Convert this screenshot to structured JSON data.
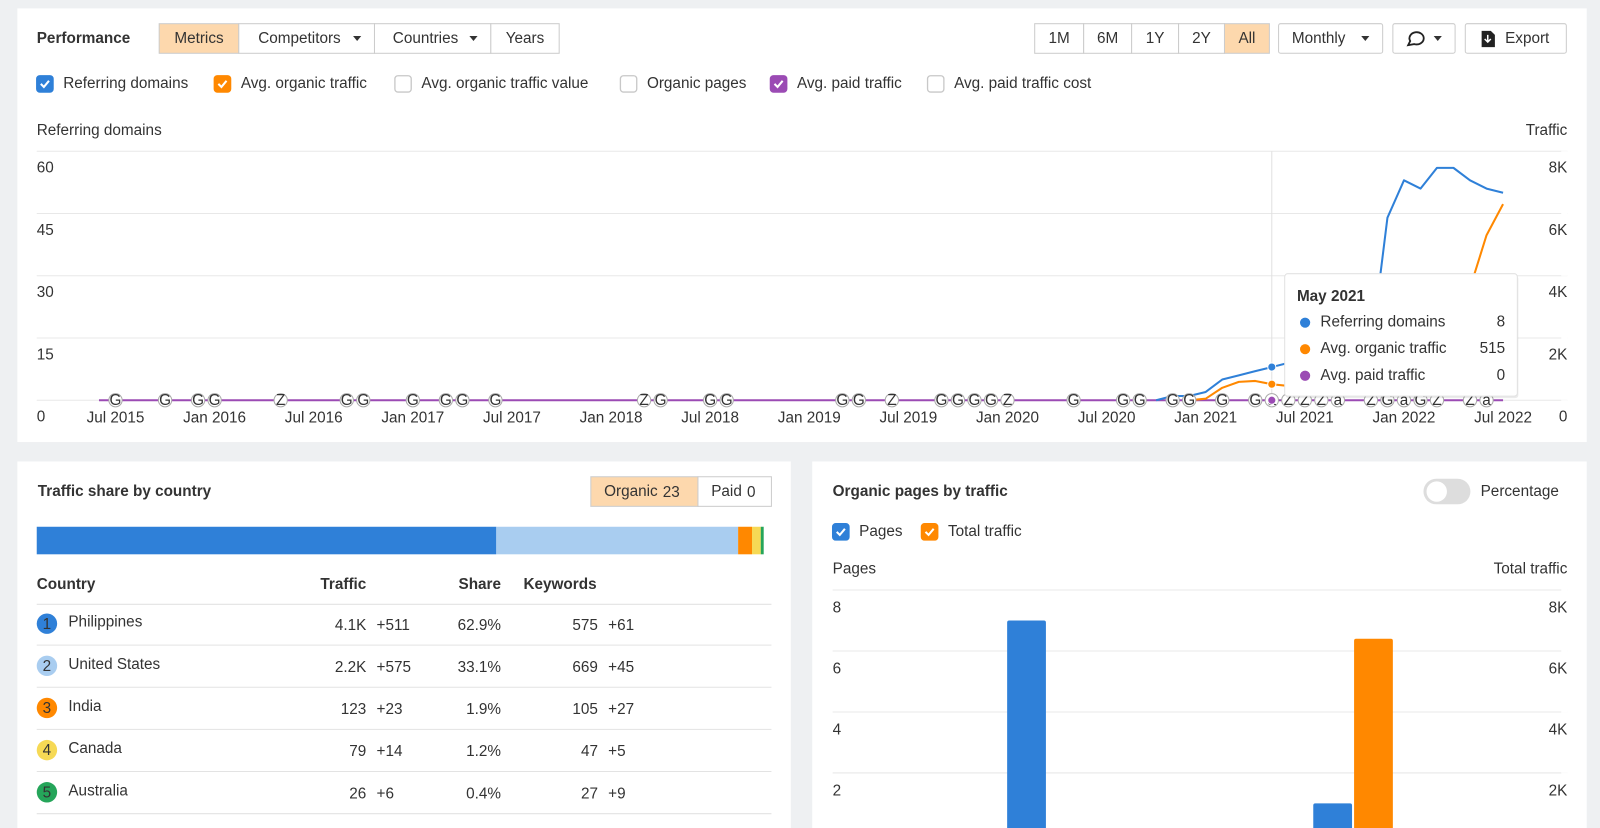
{
  "performance": {
    "title": "Performance",
    "tabs": [
      {
        "label": "Metrics",
        "active": true,
        "dropdown": false
      },
      {
        "label": "Competitors",
        "active": false,
        "dropdown": true
      },
      {
        "label": "Countries",
        "active": false,
        "dropdown": true
      },
      {
        "label": "Years",
        "active": false,
        "dropdown": false
      }
    ],
    "ranges": [
      {
        "label": "1M",
        "active": false
      },
      {
        "label": "6M",
        "active": false
      },
      {
        "label": "1Y",
        "active": false
      },
      {
        "label": "2Y",
        "active": false
      },
      {
        "label": "All",
        "active": true
      }
    ],
    "interval": "Monthly",
    "export": "Export",
    "metrics": [
      {
        "label": "Referring domains",
        "checked": true,
        "color": "#2f80d8"
      },
      {
        "label": "Avg. organic traffic",
        "checked": true,
        "color": "#ff8800"
      },
      {
        "label": "Avg. organic traffic value",
        "checked": false,
        "color": "#cccccc"
      },
      {
        "label": "Organic pages",
        "checked": false,
        "color": "#cccccc"
      },
      {
        "label": "Avg. paid traffic",
        "checked": true,
        "color": "#9b4bb4"
      },
      {
        "label": "Avg. paid traffic cost",
        "checked": false,
        "color": "#cccccc"
      }
    ],
    "chart": {
      "type": "line",
      "y_label": "Referring domains",
      "y2_label": "Traffic",
      "grid": true,
      "categories": [
        null,
        "Jul 2015",
        null,
        null,
        null,
        null,
        null,
        "Jan 2016",
        null,
        null,
        null,
        null,
        null,
        "Jul 2016",
        null,
        null,
        null,
        null,
        null,
        "Jan 2017",
        null,
        null,
        null,
        null,
        null,
        "Jul 2017",
        null,
        null,
        null,
        null,
        null,
        "Jan 2018",
        null,
        null,
        null,
        null,
        null,
        "Jul 2018",
        null,
        null,
        null,
        null,
        null,
        "Jan 2019",
        null,
        null,
        null,
        null,
        null,
        "Jul 2019",
        null,
        null,
        null,
        null,
        null,
        "Jan 2020",
        null,
        null,
        null,
        null,
        null,
        "Jul 2020",
        null,
        null,
        null,
        null,
        null,
        "Jan 2021",
        null,
        null,
        null,
        null,
        null,
        "Jul 2021",
        null,
        null,
        null,
        null,
        null,
        "Jan 2022",
        null,
        null,
        null,
        null,
        null,
        "Jul 2022"
      ],
      "series": [
        {
          "name": "Referring domains",
          "color": "#2f80d8",
          "axis": "y",
          "values": [
            null,
            null,
            null,
            null,
            null,
            null,
            null,
            null,
            null,
            null,
            null,
            null,
            null,
            null,
            null,
            null,
            null,
            null,
            null,
            null,
            null,
            null,
            null,
            null,
            null,
            null,
            null,
            null,
            null,
            null,
            null,
            null,
            null,
            null,
            null,
            null,
            null,
            null,
            null,
            null,
            null,
            null,
            null,
            null,
            null,
            null,
            null,
            null,
            null,
            null,
            null,
            null,
            null,
            null,
            null,
            null,
            null,
            null,
            null,
            null,
            null,
            null,
            null,
            null,
            0,
            1,
            1,
            2,
            5,
            6,
            7,
            8,
            9,
            9,
            10,
            11,
            11,
            12,
            44,
            53,
            51,
            56,
            56,
            53,
            51,
            50
          ]
        },
        {
          "name": "Avg. organic traffic",
          "color": "#ff8800",
          "axis": "y2",
          "values": [
            null,
            null,
            null,
            null,
            null,
            null,
            null,
            null,
            null,
            null,
            null,
            null,
            null,
            null,
            null,
            null,
            null,
            null,
            null,
            null,
            null,
            null,
            null,
            null,
            null,
            null,
            null,
            null,
            null,
            null,
            null,
            null,
            null,
            null,
            null,
            null,
            null,
            null,
            null,
            null,
            null,
            null,
            null,
            null,
            null,
            null,
            null,
            null,
            null,
            null,
            null,
            null,
            null,
            null,
            null,
            null,
            null,
            null,
            null,
            null,
            null,
            null,
            null,
            null,
            null,
            null,
            0,
            50,
            400,
            590,
            620,
            515,
            460,
            400,
            380,
            400,
            450,
            500,
            600,
            700,
            800,
            1000,
            1500,
            3600,
            5300,
            6300
          ]
        },
        {
          "name": "Avg. paid traffic",
          "color": "#9b4bb4",
          "axis": "y2",
          "values": [
            0,
            0,
            0,
            0,
            0,
            0,
            0,
            0,
            0,
            0,
            0,
            0,
            0,
            0,
            0,
            0,
            0,
            0,
            0,
            0,
            0,
            0,
            0,
            0,
            0,
            0,
            0,
            0,
            0,
            0,
            0,
            0,
            0,
            0,
            0,
            0,
            0,
            0,
            0,
            0,
            0,
            0,
            0,
            0,
            0,
            0,
            0,
            0,
            0,
            0,
            0,
            0,
            0,
            0,
            0,
            0,
            0,
            0,
            0,
            0,
            0,
            0,
            0,
            0,
            0,
            0,
            0,
            0,
            0,
            0,
            0,
            0,
            0,
            0,
            0,
            0,
            0,
            0,
            0,
            0,
            0,
            0,
            0,
            0,
            0,
            0
          ]
        }
      ],
      "ylim": [
        0,
        60
      ],
      "yticks": [
        0,
        15,
        30,
        45,
        60
      ],
      "y2lim": [
        0,
        8000
      ],
      "y2ticks": [
        {
          "value": 0,
          "label": "0"
        },
        {
          "value": 2000,
          "label": "2K"
        },
        {
          "value": 4000,
          "label": "4K"
        },
        {
          "value": 6000,
          "label": "6K"
        },
        {
          "value": 8000,
          "label": "8K"
        }
      ],
      "markers": [
        {
          "x": 1,
          "label": "G"
        },
        {
          "x": 4,
          "label": "G"
        },
        {
          "x": 6,
          "label": "G"
        },
        {
          "x": 7,
          "label": "G"
        },
        {
          "x": 11,
          "label": "Z"
        },
        {
          "x": 15,
          "label": "G"
        },
        {
          "x": 16,
          "label": "G"
        },
        {
          "x": 19,
          "label": "G"
        },
        {
          "x": 21,
          "label": "G"
        },
        {
          "x": 22,
          "label": "G"
        },
        {
          "x": 24,
          "label": "G"
        },
        {
          "x": 33,
          "label": "Z"
        },
        {
          "x": 34,
          "label": "G"
        },
        {
          "x": 37,
          "label": "G"
        },
        {
          "x": 38,
          "label": "G"
        },
        {
          "x": 45,
          "label": "G"
        },
        {
          "x": 46,
          "label": "G"
        },
        {
          "x": 48,
          "label": "Z"
        },
        {
          "x": 51,
          "label": "G"
        },
        {
          "x": 52,
          "label": "G"
        },
        {
          "x": 53,
          "label": "G"
        },
        {
          "x": 54,
          "label": "G"
        },
        {
          "x": 55,
          "label": "Z"
        },
        {
          "x": 59,
          "label": "G"
        },
        {
          "x": 62,
          "label": "G"
        },
        {
          "x": 63,
          "label": "G"
        },
        {
          "x": 65,
          "label": "G"
        },
        {
          "x": 66,
          "label": "G"
        },
        {
          "x": 68,
          "label": "G"
        },
        {
          "x": 70,
          "label": "G"
        },
        {
          "x": 71,
          "label": "a"
        },
        {
          "x": 72,
          "label": "Z"
        },
        {
          "x": 73,
          "label": "Z"
        },
        {
          "x": 74,
          "label": "Z"
        },
        {
          "x": 75,
          "label": "a"
        },
        {
          "x": 77,
          "label": "Z"
        },
        {
          "x": 78,
          "label": "G"
        },
        {
          "x": 79,
          "label": "a"
        },
        {
          "x": 80,
          "label": "G"
        },
        {
          "x": 81,
          "label": "Z"
        },
        {
          "x": 83,
          "label": "Z"
        },
        {
          "x": 84,
          "label": "a"
        }
      ],
      "tooltip": {
        "title": "May 2021"
      }
    }
  },
  "traffic_share": {
    "title": "Traffic share by country",
    "toggles": [
      {
        "label": "Organic",
        "count": 23,
        "active": true
      },
      {
        "label": "Paid",
        "count": 0,
        "active": false
      }
    ],
    "columns": [
      "Country",
      "Traffic",
      "Share",
      "Keywords"
    ],
    "rows": [
      {
        "rank": 1,
        "country": "Philippines",
        "traffic": "4.1K",
        "traffic_change": "+511",
        "share": {
          "value": 62.9,
          "label": "62.9%"
        },
        "keywords": 575,
        "keywords_change": "+61",
        "color": "#2f80d8"
      },
      {
        "rank": 2,
        "country": "United States",
        "traffic": "2.2K",
        "traffic_change": "+575",
        "share": {
          "value": 33.1,
          "label": "33.1%"
        },
        "keywords": 669,
        "keywords_change": "+45",
        "color": "#a9cdf0"
      },
      {
        "rank": 3,
        "country": "India",
        "traffic": "123",
        "traffic_change": "+23",
        "share": {
          "value": 1.9,
          "label": "1.9%"
        },
        "keywords": 105,
        "keywords_change": "+27",
        "color": "#ff8800"
      },
      {
        "rank": 4,
        "country": "Canada",
        "traffic": "79",
        "traffic_change": "+14",
        "share": {
          "value": 1.2,
          "label": "1.2%"
        },
        "keywords": 47,
        "keywords_change": "+5",
        "color": "#f6d955"
      },
      {
        "rank": 5,
        "country": "Australia",
        "traffic": "26",
        "traffic_change": "+6",
        "share": {
          "value": 0.4,
          "label": "0.4%"
        },
        "keywords": 27,
        "keywords_change": "+9",
        "color": "#25a55a"
      }
    ]
  },
  "organic_pages": {
    "title": "Organic pages by traffic",
    "percentage": {
      "label": "Percentage",
      "on": false
    },
    "chart": {
      "type": "bar",
      "y_label": "Pages",
      "y2_label": "Total traffic",
      "grid": true,
      "categories": [
        null,
        null
      ],
      "series": [
        {
          "name": "Pages",
          "color": "#2f80d8",
          "checked": true,
          "axis": "y",
          "values": [
            7,
            1
          ]
        },
        {
          "name": "Total traffic",
          "color": "#ff8800",
          "checked": true,
          "axis": "y2",
          "values": [
            0,
            6400
          ]
        }
      ],
      "ylim": [
        0,
        8
      ],
      "yticks": [
        2,
        4,
        6,
        8
      ],
      "y2lim": [
        0,
        8000
      ],
      "y2ticks": [
        {
          "value": 2000,
          "label": "2K"
        },
        {
          "value": 4000,
          "label": "4K"
        },
        {
          "value": 6000,
          "label": "6K"
        },
        {
          "value": 8000,
          "label": "8K"
        }
      ]
    }
  }
}
